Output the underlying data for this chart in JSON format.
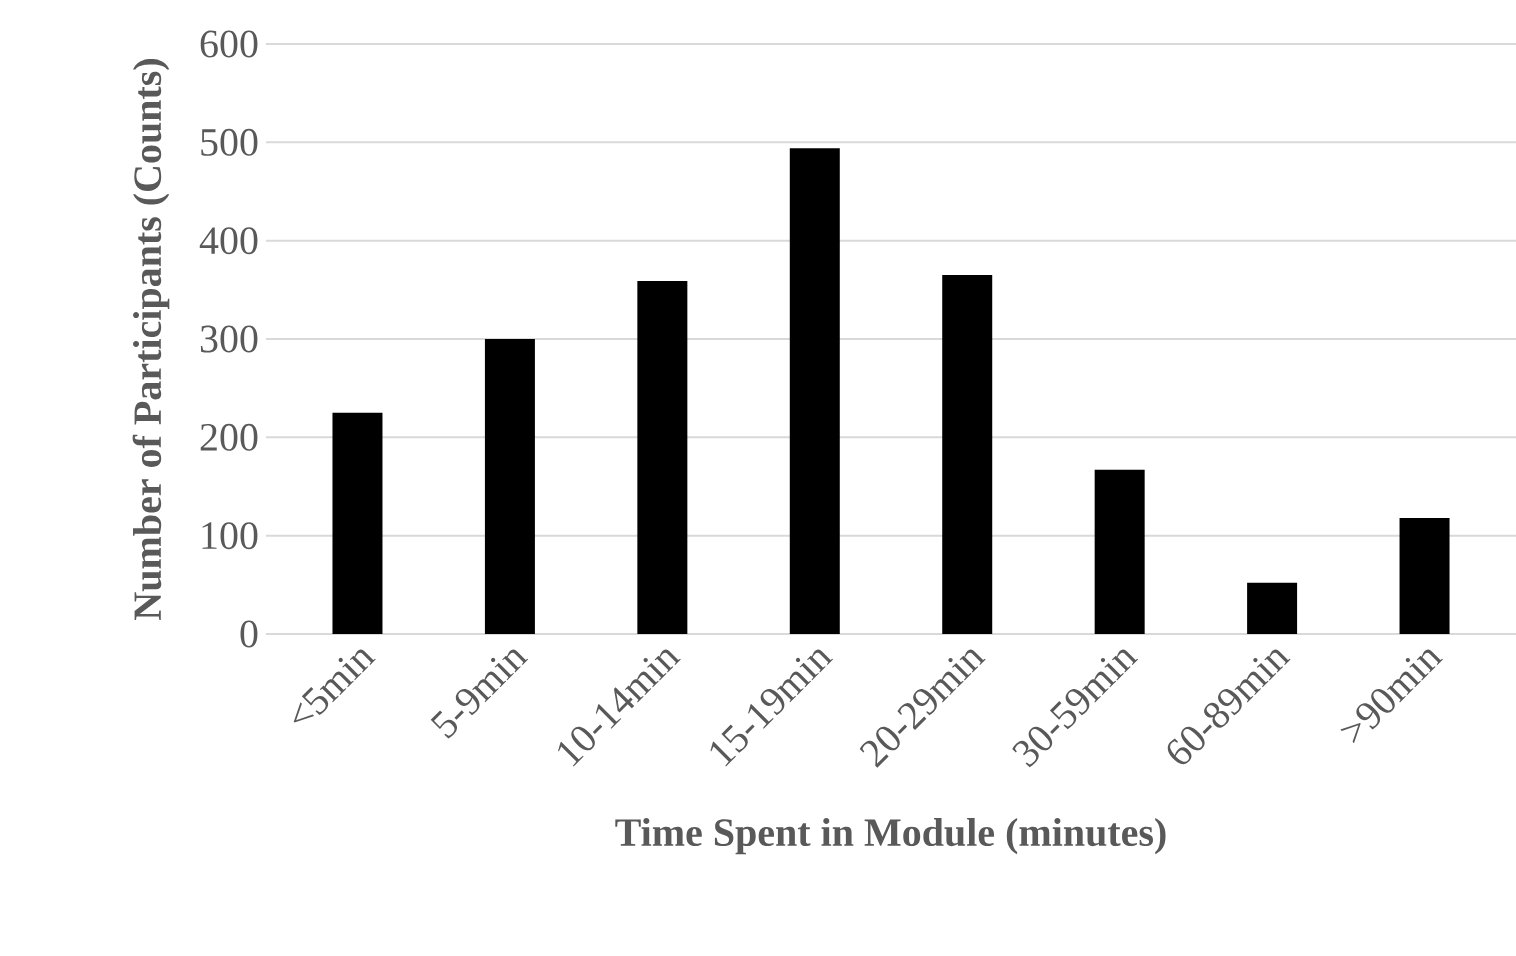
{
  "chart_data": {
    "type": "bar",
    "xlabel": "Time Spent in Module (minutes)",
    "ylabel": "Number of Participants (Counts)",
    "categories": [
      "<5min",
      "5-9min",
      "10-14min",
      "15-19min",
      "20-29min",
      "30-59min",
      "60-89min",
      ">90min"
    ],
    "values": [
      225,
      300,
      359,
      494,
      365,
      167,
      52,
      118
    ],
    "color": "#000000",
    "ylim": [
      0,
      600
    ],
    "yticks": [
      0,
      100,
      200,
      300,
      400,
      500,
      600
    ],
    "grid": "y"
  }
}
